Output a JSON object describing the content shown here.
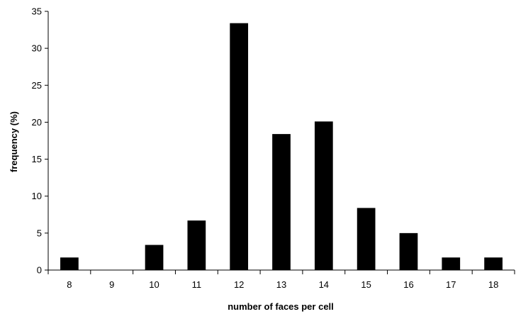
{
  "chart_data": {
    "type": "bar",
    "categories": [
      "8",
      "9",
      "10",
      "11",
      "12",
      "13",
      "14",
      "15",
      "16",
      "17",
      "18"
    ],
    "values": [
      1.7,
      0,
      3.4,
      6.7,
      33.4,
      18.4,
      20.1,
      8.4,
      5.0,
      1.7,
      1.7
    ],
    "xlabel": "number of faces per cell",
    "ylabel": "frequency (%)",
    "ylim": [
      0,
      35
    ],
    "yticks": [
      0,
      5,
      10,
      15,
      20,
      25,
      30,
      35
    ],
    "grid": false,
    "bar_color": "#000000",
    "axis_color": "#000000"
  }
}
